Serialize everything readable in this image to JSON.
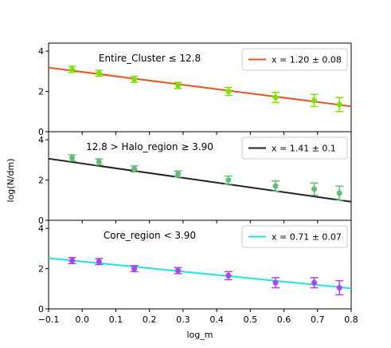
{
  "x_axis": {
    "label": "log_m",
    "range": [
      -0.1,
      0.8
    ],
    "ticks": [
      -0.1,
      0.0,
      0.1,
      0.2,
      0.3,
      0.4,
      0.5,
      0.6,
      0.7,
      0.8
    ],
    "tick_labels": [
      "−0.1",
      "0.0",
      "0.1",
      "0.2",
      "0.3",
      "0.4",
      "0.5",
      "0.6",
      "0.7",
      "0.8"
    ]
  },
  "y_axis": {
    "label": "log(N/dm)",
    "range": [
      0,
      4.4
    ],
    "ticks": [
      0,
      2,
      4
    ],
    "tick_labels": [
      "0",
      "2",
      "4"
    ]
  },
  "chart_data": [
    {
      "type": "scatter",
      "title": "Entire_Cluster  ≤ 12.8",
      "xlabel": "log_m",
      "ylabel": "log(N/dm)",
      "xlim": [
        -0.1,
        0.8
      ],
      "ylim": [
        0,
        4.4
      ],
      "legend_position": "top-right",
      "legend_label": "x = 1.20 ± 0.08",
      "point_color": "#7fe000",
      "line_color": "#e8561e",
      "points": {
        "x": [
          -0.03,
          0.05,
          0.155,
          0.285,
          0.435,
          0.575,
          0.69,
          0.765
        ],
        "y": [
          3.1,
          2.9,
          2.6,
          2.3,
          2.0,
          1.7,
          1.55,
          1.35
        ],
        "err": [
          0.15,
          0.15,
          0.15,
          0.15,
          0.2,
          0.25,
          0.3,
          0.35
        ]
      },
      "fit_line": {
        "x": [
          -0.1,
          0.8
        ],
        "y": [
          3.18,
          1.26
        ]
      }
    },
    {
      "type": "scatter",
      "title": "12.8 > Halo_region  ≥ 3.90",
      "xlabel": "log_m",
      "ylabel": "log(N/dm)",
      "xlim": [
        -0.1,
        0.8
      ],
      "ylim": [
        0,
        4.4
      ],
      "legend_position": "top-right",
      "legend_label": "x = 1.41 ± 0.1",
      "point_color": "#66bb77",
      "line_color": "#222222",
      "points": {
        "x": [
          -0.03,
          0.05,
          0.155,
          0.285,
          0.435,
          0.575,
          0.69,
          0.765
        ],
        "y": [
          3.1,
          2.9,
          2.55,
          2.3,
          2.0,
          1.7,
          1.55,
          1.35
        ],
        "err": [
          0.15,
          0.15,
          0.15,
          0.15,
          0.2,
          0.25,
          0.3,
          0.35
        ]
      },
      "fit_line": {
        "x": [
          -0.1,
          0.8
        ],
        "y": [
          3.06,
          0.92
        ]
      }
    },
    {
      "type": "scatter",
      "title": "Core_region < 3.90",
      "xlabel": "log_m",
      "ylabel": "log(N/dm)",
      "xlim": [
        -0.1,
        0.8
      ],
      "ylim": [
        0,
        4.4
      ],
      "legend_position": "top-right",
      "legend_label": "x = 0.71 ± 0.07",
      "point_color": "#aa44ee",
      "line_color": "#22e0e0",
      "points": {
        "x": [
          -0.03,
          0.05,
          0.155,
          0.285,
          0.435,
          0.575,
          0.69,
          0.765
        ],
        "y": [
          2.4,
          2.35,
          2.0,
          1.9,
          1.65,
          1.3,
          1.3,
          1.05
        ],
        "err": [
          0.15,
          0.15,
          0.15,
          0.15,
          0.2,
          0.25,
          0.25,
          0.35
        ]
      },
      "fit_line": {
        "x": [
          -0.1,
          0.8
        ],
        "y": [
          2.52,
          1.02
        ]
      }
    }
  ]
}
